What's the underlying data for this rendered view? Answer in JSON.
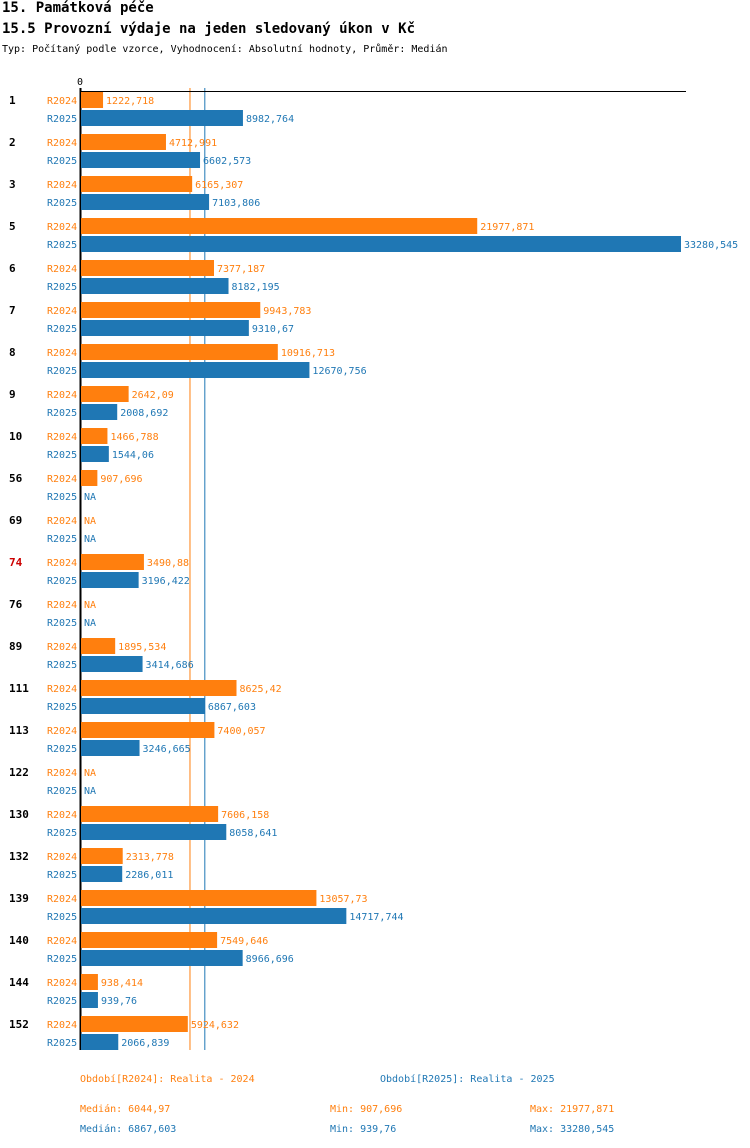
{
  "header": {
    "section": "15. Památková péče",
    "title": "15.5 Provozní výdaje na jeden sledovaný úkon v Kč",
    "subtitle": "Typ: Počítaný podle vzorce, Vyhodnocení: Absolutní hodnoty, Průměr: Medián"
  },
  "colors": {
    "r2024": "#ff7f0e",
    "r2025": "#1f77b4",
    "highlight": "#cc0000"
  },
  "chart_data": {
    "type": "bar",
    "orientation": "horizontal",
    "axis_zero_label": "0",
    "xlim": [
      0,
      33280.545
    ],
    "series_labels": [
      "R2024",
      "R2025"
    ],
    "na_label": "NA",
    "categories": [
      {
        "id": "1",
        "highlight": false,
        "r2024": 1222.718,
        "r2025": 8982.764,
        "l2024": "1222,718",
        "l2025": "8982,764"
      },
      {
        "id": "2",
        "highlight": false,
        "r2024": 4712.991,
        "r2025": 6602.573,
        "l2024": "4712,991",
        "l2025": "6602,573"
      },
      {
        "id": "3",
        "highlight": false,
        "r2024": 6165.307,
        "r2025": 7103.806,
        "l2024": "6165,307",
        "l2025": "7103,806"
      },
      {
        "id": "5",
        "highlight": false,
        "r2024": 21977.871,
        "r2025": 33280.545,
        "l2024": "21977,871",
        "l2025": "33280,545"
      },
      {
        "id": "6",
        "highlight": false,
        "r2024": 7377.187,
        "r2025": 8182.195,
        "l2024": "7377,187",
        "l2025": "8182,195"
      },
      {
        "id": "7",
        "highlight": false,
        "r2024": 9943.783,
        "r2025": 9310.67,
        "l2024": "9943,783",
        "l2025": "9310,67"
      },
      {
        "id": "8",
        "highlight": false,
        "r2024": 10916.713,
        "r2025": 12670.756,
        "l2024": "10916,713",
        "l2025": "12670,756"
      },
      {
        "id": "9",
        "highlight": false,
        "r2024": 2642.09,
        "r2025": 2008.692,
        "l2024": "2642,09",
        "l2025": "2008,692"
      },
      {
        "id": "10",
        "highlight": false,
        "r2024": 1466.788,
        "r2025": 1544.06,
        "l2024": "1466,788",
        "l2025": "1544,06"
      },
      {
        "id": "56",
        "highlight": false,
        "r2024": 907.696,
        "r2025": null,
        "l2024": "907,696",
        "l2025": "NA"
      },
      {
        "id": "69",
        "highlight": false,
        "r2024": null,
        "r2025": null,
        "l2024": "NA",
        "l2025": "NA"
      },
      {
        "id": "74",
        "highlight": true,
        "r2024": 3490.88,
        "r2025": 3196.422,
        "l2024": "3490,88",
        "l2025": "3196,422"
      },
      {
        "id": "76",
        "highlight": false,
        "r2024": null,
        "r2025": null,
        "l2024": "NA",
        "l2025": "NA"
      },
      {
        "id": "89",
        "highlight": false,
        "r2024": 1895.534,
        "r2025": 3414.686,
        "l2024": "1895,534",
        "l2025": "3414,686"
      },
      {
        "id": "111",
        "highlight": false,
        "r2024": 8625.42,
        "r2025": 6867.603,
        "l2024": "8625,42",
        "l2025": "6867,603"
      },
      {
        "id": "113",
        "highlight": false,
        "r2024": 7400.057,
        "r2025": 3246.665,
        "l2024": "7400,057",
        "l2025": "3246,665"
      },
      {
        "id": "122",
        "highlight": false,
        "r2024": null,
        "r2025": null,
        "l2024": "NA",
        "l2025": "NA"
      },
      {
        "id": "130",
        "highlight": false,
        "r2024": 7606.158,
        "r2025": 8058.641,
        "l2024": "7606,158",
        "l2025": "8058,641"
      },
      {
        "id": "132",
        "highlight": false,
        "r2024": 2313.778,
        "r2025": 2286.011,
        "l2024": "2313,778",
        "l2025": "2286,011"
      },
      {
        "id": "139",
        "highlight": false,
        "r2024": 13057.73,
        "r2025": 14717.744,
        "l2024": "13057,73",
        "l2025": "14717,744"
      },
      {
        "id": "140",
        "highlight": false,
        "r2024": 7549.646,
        "r2025": 8966.696,
        "l2024": "7549,646",
        "l2025": "8966,696"
      },
      {
        "id": "144",
        "highlight": false,
        "r2024": 938.414,
        "r2025": 939.76,
        "l2024": "938,414",
        "l2025": "939,76"
      },
      {
        "id": "152",
        "highlight": false,
        "r2024": 5924.632,
        "r2025": 2066.839,
        "l2024": "5924,632",
        "l2025": "2066,839"
      }
    ],
    "median_lines": {
      "r2024": 6044.97,
      "r2025": 6867.603
    }
  },
  "legend": {
    "r2024": "Období[R2024]: Realita - 2024",
    "r2025": "Období[R2025]: Realita - 2025"
  },
  "stats": {
    "r2024": {
      "median": "Medián: 6044,97",
      "min": "Min: 907,696",
      "max": "Max: 21977,871"
    },
    "r2025": {
      "median": "Medián: 6867,603",
      "min": "Min: 939,76",
      "max": "Max: 33280,545"
    }
  }
}
